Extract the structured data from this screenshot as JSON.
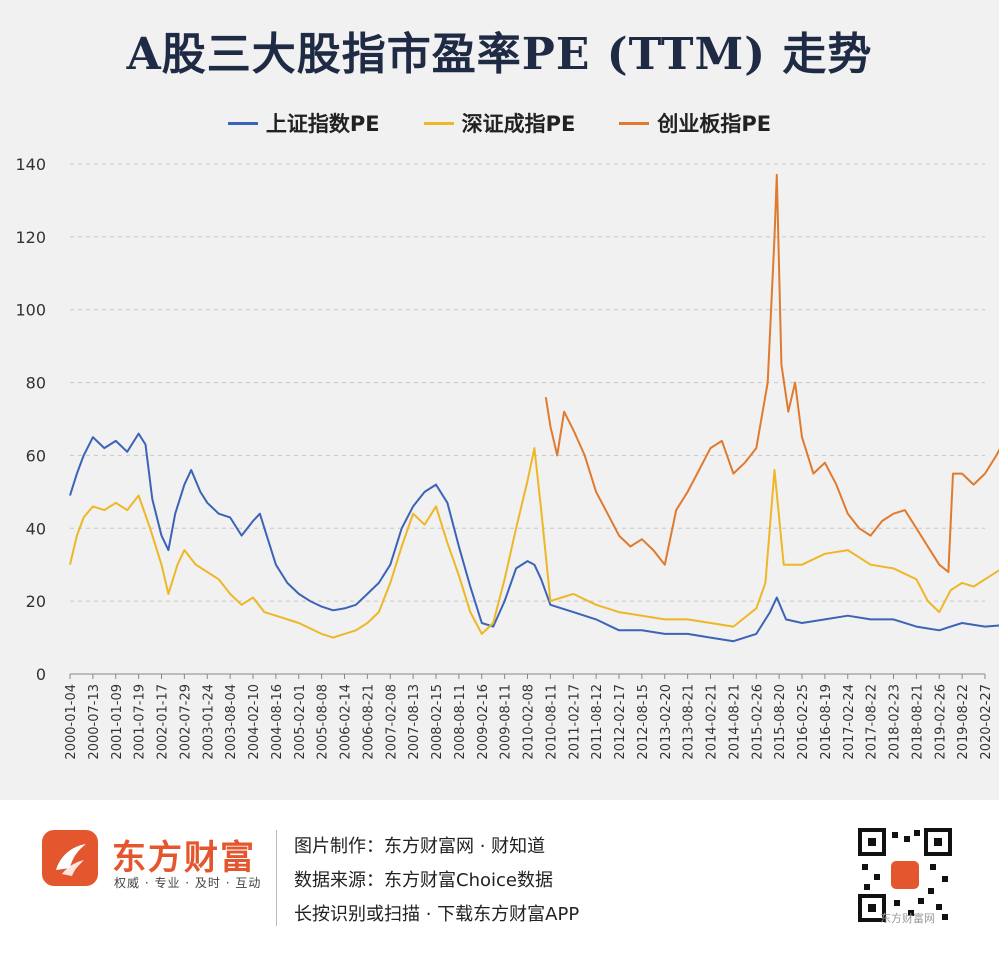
{
  "chart_data": {
    "type": "line",
    "title": "A股三大股指市盈率PE (TTM) 走势",
    "ylim": [
      0,
      140
    ],
    "yticks": [
      0,
      20,
      40,
      60,
      80,
      100,
      120,
      140
    ],
    "grid": true,
    "legend_position": "top",
    "xticks": [
      "2000-01-04",
      "2000-07-13",
      "2001-01-09",
      "2001-07-19",
      "2002-01-17",
      "2002-07-29",
      "2003-01-24",
      "2003-08-04",
      "2004-02-10",
      "2004-08-16",
      "2005-02-01",
      "2005-08-08",
      "2006-02-14",
      "2006-08-21",
      "2007-02-08",
      "2007-08-13",
      "2008-02-15",
      "2008-08-11",
      "2009-02-16",
      "2009-08-11",
      "2010-02-08",
      "2010-08-11",
      "2011-02-17",
      "2011-08-12",
      "2012-02-17",
      "2012-08-15",
      "2013-02-20",
      "2013-08-21",
      "2014-02-21",
      "2014-08-21",
      "2015-02-26",
      "2015-08-20",
      "2016-02-25",
      "2016-08-19",
      "2017-02-24",
      "2017-08-22",
      "2018-02-23",
      "2018-08-21",
      "2019-02-26",
      "2019-08-22",
      "2020-02-27"
    ],
    "series": [
      {
        "name": "上证指数PE",
        "color": "#3b63b8",
        "lw": 2,
        "points": [
          [
            0,
            49
          ],
          [
            0.3,
            55
          ],
          [
            0.6,
            60
          ],
          [
            1,
            65
          ],
          [
            1.5,
            62
          ],
          [
            2,
            64
          ],
          [
            2.5,
            61
          ],
          [
            3,
            66
          ],
          [
            3.3,
            63
          ],
          [
            3.6,
            48
          ],
          [
            4,
            38
          ],
          [
            4.3,
            34
          ],
          [
            4.6,
            44
          ],
          [
            5,
            52
          ],
          [
            5.3,
            56
          ],
          [
            5.7,
            50
          ],
          [
            6,
            47
          ],
          [
            6.5,
            44
          ],
          [
            7,
            43
          ],
          [
            7.5,
            38
          ],
          [
            8,
            42
          ],
          [
            8.3,
            44
          ],
          [
            8.6,
            38
          ],
          [
            9,
            30
          ],
          [
            9.5,
            25
          ],
          [
            10,
            22
          ],
          [
            10.5,
            20
          ],
          [
            11,
            18.5
          ],
          [
            11.5,
            17.5
          ],
          [
            12,
            18
          ],
          [
            12.5,
            19
          ],
          [
            13,
            22
          ],
          [
            13.5,
            25
          ],
          [
            14,
            30
          ],
          [
            14.5,
            40
          ],
          [
            15,
            46
          ],
          [
            15.5,
            50
          ],
          [
            16,
            52
          ],
          [
            16.5,
            47
          ],
          [
            17,
            35
          ],
          [
            17.5,
            24
          ],
          [
            18,
            14
          ],
          [
            18.5,
            13
          ],
          [
            19,
            20
          ],
          [
            19.5,
            29
          ],
          [
            20,
            31
          ],
          [
            20.3,
            30
          ],
          [
            20.6,
            26
          ],
          [
            21,
            19
          ],
          [
            22,
            17
          ],
          [
            23,
            15
          ],
          [
            24,
            12
          ],
          [
            25,
            12
          ],
          [
            26,
            11
          ],
          [
            27,
            11
          ],
          [
            28,
            10
          ],
          [
            29,
            9
          ],
          [
            30,
            11
          ],
          [
            30.6,
            17
          ],
          [
            30.9,
            21
          ],
          [
            31.3,
            15
          ],
          [
            32,
            14
          ],
          [
            33,
            15
          ],
          [
            34,
            16
          ],
          [
            35,
            15
          ],
          [
            36,
            15
          ],
          [
            37,
            13
          ],
          [
            38,
            12
          ],
          [
            38.5,
            13
          ],
          [
            39,
            14
          ],
          [
            40,
            13
          ],
          [
            41,
            13.5
          ]
        ]
      },
      {
        "name": "深证成指PE",
        "color": "#edb726",
        "lw": 2,
        "points": [
          [
            0,
            30
          ],
          [
            0.3,
            38
          ],
          [
            0.6,
            43
          ],
          [
            1,
            46
          ],
          [
            1.5,
            45
          ],
          [
            2,
            47
          ],
          [
            2.5,
            45
          ],
          [
            3,
            49
          ],
          [
            3.5,
            40
          ],
          [
            4,
            30
          ],
          [
            4.3,
            22
          ],
          [
            4.7,
            30
          ],
          [
            5,
            34
          ],
          [
            5.5,
            30
          ],
          [
            6,
            28
          ],
          [
            6.5,
            26
          ],
          [
            7,
            22
          ],
          [
            7.5,
            19
          ],
          [
            8,
            21
          ],
          [
            8.5,
            17
          ],
          [
            9,
            16
          ],
          [
            10,
            14
          ],
          [
            11,
            11
          ],
          [
            11.5,
            10
          ],
          [
            12,
            11
          ],
          [
            12.5,
            12
          ],
          [
            13,
            14
          ],
          [
            13.5,
            17
          ],
          [
            14,
            25
          ],
          [
            14.5,
            35
          ],
          [
            15,
            44
          ],
          [
            15.5,
            41
          ],
          [
            16,
            46
          ],
          [
            16.5,
            36
          ],
          [
            17,
            27
          ],
          [
            17.5,
            17
          ],
          [
            18,
            11
          ],
          [
            18.5,
            14
          ],
          [
            19,
            26
          ],
          [
            19.5,
            40
          ],
          [
            20,
            53
          ],
          [
            20.3,
            62
          ],
          [
            20.6,
            45
          ],
          [
            21,
            20
          ],
          [
            21.5,
            21
          ],
          [
            22,
            22
          ],
          [
            23,
            19
          ],
          [
            24,
            17
          ],
          [
            25,
            16
          ],
          [
            26,
            15
          ],
          [
            27,
            15
          ],
          [
            28,
            14
          ],
          [
            29,
            13
          ],
          [
            30,
            18
          ],
          [
            30.4,
            25
          ],
          [
            30.8,
            56
          ],
          [
            31.2,
            30
          ],
          [
            32,
            30
          ],
          [
            33,
            33
          ],
          [
            34,
            34
          ],
          [
            35,
            30
          ],
          [
            36,
            29
          ],
          [
            37,
            26
          ],
          [
            37.5,
            20
          ],
          [
            38,
            17
          ],
          [
            38.5,
            23
          ],
          [
            39,
            25
          ],
          [
            39.5,
            24
          ],
          [
            40,
            26
          ],
          [
            41,
            30
          ]
        ]
      },
      {
        "name": "创业板指PE",
        "color": "#e07a2e",
        "lw": 2,
        "points": [
          [
            20.8,
            76
          ],
          [
            21,
            68
          ],
          [
            21.3,
            60
          ],
          [
            21.6,
            72
          ],
          [
            22,
            67
          ],
          [
            22.5,
            60
          ],
          [
            23,
            50
          ],
          [
            23.5,
            44
          ],
          [
            24,
            38
          ],
          [
            24.5,
            35
          ],
          [
            25,
            37
          ],
          [
            25.5,
            34
          ],
          [
            26,
            30
          ],
          [
            26.5,
            45
          ],
          [
            27,
            50
          ],
          [
            27.5,
            56
          ],
          [
            28,
            62
          ],
          [
            28.5,
            64
          ],
          [
            29,
            55
          ],
          [
            29.5,
            58
          ],
          [
            30,
            62
          ],
          [
            30.5,
            80
          ],
          [
            30.8,
            120
          ],
          [
            30.9,
            137
          ],
          [
            31.1,
            85
          ],
          [
            31.4,
            72
          ],
          [
            31.7,
            80
          ],
          [
            32,
            65
          ],
          [
            32.5,
            55
          ],
          [
            33,
            58
          ],
          [
            33.5,
            52
          ],
          [
            34,
            44
          ],
          [
            34.5,
            40
          ],
          [
            35,
            38
          ],
          [
            35.5,
            42
          ],
          [
            36,
            44
          ],
          [
            36.5,
            45
          ],
          [
            37,
            40
          ],
          [
            37.5,
            35
          ],
          [
            38,
            30
          ],
          [
            38.4,
            28
          ],
          [
            38.6,
            55
          ],
          [
            39,
            55
          ],
          [
            39.5,
            52
          ],
          [
            40,
            55
          ],
          [
            40.5,
            60
          ],
          [
            41,
            66
          ]
        ]
      }
    ]
  },
  "footer": {
    "brand_name": "东方财富",
    "brand_slogan": "权威 · 专业 · 及时 · 互动",
    "line1": "图片制作：东方财富网 · 财知道",
    "line2": "数据来源：东方财富Choice数据",
    "line3": "长按识别或扫描 · 下载东方财富APP",
    "watermark": "东方财富网"
  }
}
